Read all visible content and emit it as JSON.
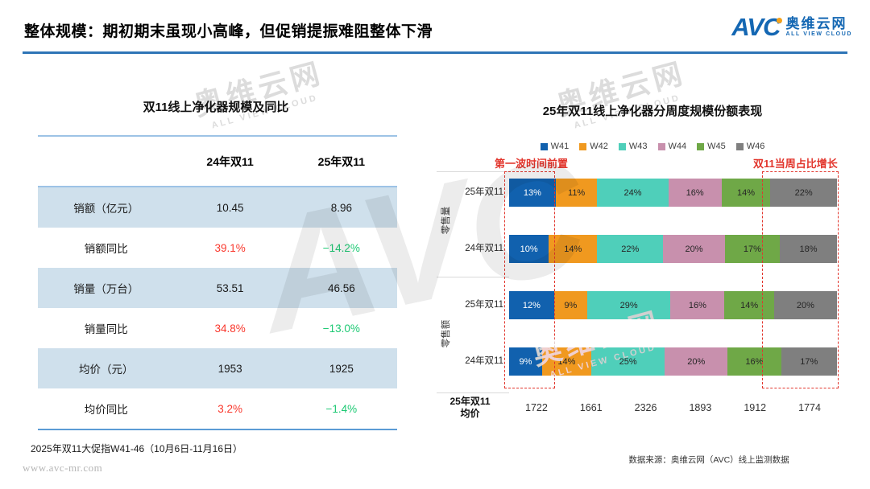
{
  "header": {
    "title": "整体规模：期初期末虽现小高峰，但促销提振难阻整体下滑",
    "logo": {
      "abbr": "AVC",
      "name_cn": "奥维云网",
      "name_en": "ALL VIEW CLOUD"
    }
  },
  "watermark": {
    "abbr": "AVC",
    "name_cn": "奥维云网",
    "name_en": "ALL VIEW CLOUD"
  },
  "colors": {
    "accent_blue": "#2E75B6",
    "table_row_shade": "#CFE0EC",
    "yoy_up_red": "#F9372C",
    "yoy_down_green": "#1CC973",
    "annotation_red": "#E2352C",
    "logo_blue": "#1467B3",
    "logo_dot_orange": "#F5A21B"
  },
  "chart_data": [
    {
      "type": "table",
      "title": "双11线上净化器规模及同比",
      "columns": [
        "",
        "24年双11",
        "25年双11"
      ],
      "rows": [
        {
          "label": "销额（亿元）",
          "y24": "10.45",
          "y25": "8.96"
        },
        {
          "label": "销额同比",
          "y24": "39.1%",
          "y25": "−14.2%"
        },
        {
          "label": "销量（万台）",
          "y24": "53.51",
          "y25": "46.56"
        },
        {
          "label": "销量同比",
          "y24": "34.8%",
          "y25": "−13.0%"
        },
        {
          "label": "均价（元）",
          "y24": "1953",
          "y25": "1925"
        },
        {
          "label": "均价同比",
          "y24": "3.2%",
          "y25": "−1.4%"
        }
      ],
      "footnote": "2025年双11大促指W41-46（10月6日-11月16日）"
    },
    {
      "type": "bar",
      "subtype": "horizontal_stacked_percent",
      "title": "25年双11线上净化器分周度规模份额表现",
      "unit": "%",
      "legend": [
        "W41",
        "W42",
        "W43",
        "W44",
        "W45",
        "W46"
      ],
      "legend_position": "top",
      "colors": [
        "#1161AE",
        "#F0991F",
        "#4FCFBA",
        "#C890AD",
        "#6FA847",
        "#7F7F7F"
      ],
      "groups": [
        {
          "name": "零售量",
          "rows": [
            {
              "label": "25年双11",
              "values": [
                13,
                11,
                24,
                16,
                14,
                22
              ]
            },
            {
              "label": "24年双11",
              "values": [
                10,
                14,
                22,
                20,
                17,
                18
              ]
            }
          ]
        },
        {
          "name": "零售额",
          "rows": [
            {
              "label": "25年双11",
              "values": [
                12,
                9,
                29,
                16,
                14,
                20
              ]
            },
            {
              "label": "24年双11",
              "values": [
                9,
                14,
                25,
                20,
                16,
                17
              ]
            }
          ]
        }
      ],
      "annotations": [
        {
          "text": "第一波时间前置",
          "position": "left"
        },
        {
          "text": "双11当周占比增长",
          "position": "right"
        }
      ],
      "avg_price": {
        "label_lines": [
          "25年双11",
          "均价"
        ],
        "values": [
          "1722",
          "1661",
          "2326",
          "1893",
          "1912",
          "1774"
        ]
      },
      "source": "数据来源：奥维云网（AVC）线上监测数据"
    }
  ],
  "footer": {
    "website": "www.avc-mr.com"
  }
}
